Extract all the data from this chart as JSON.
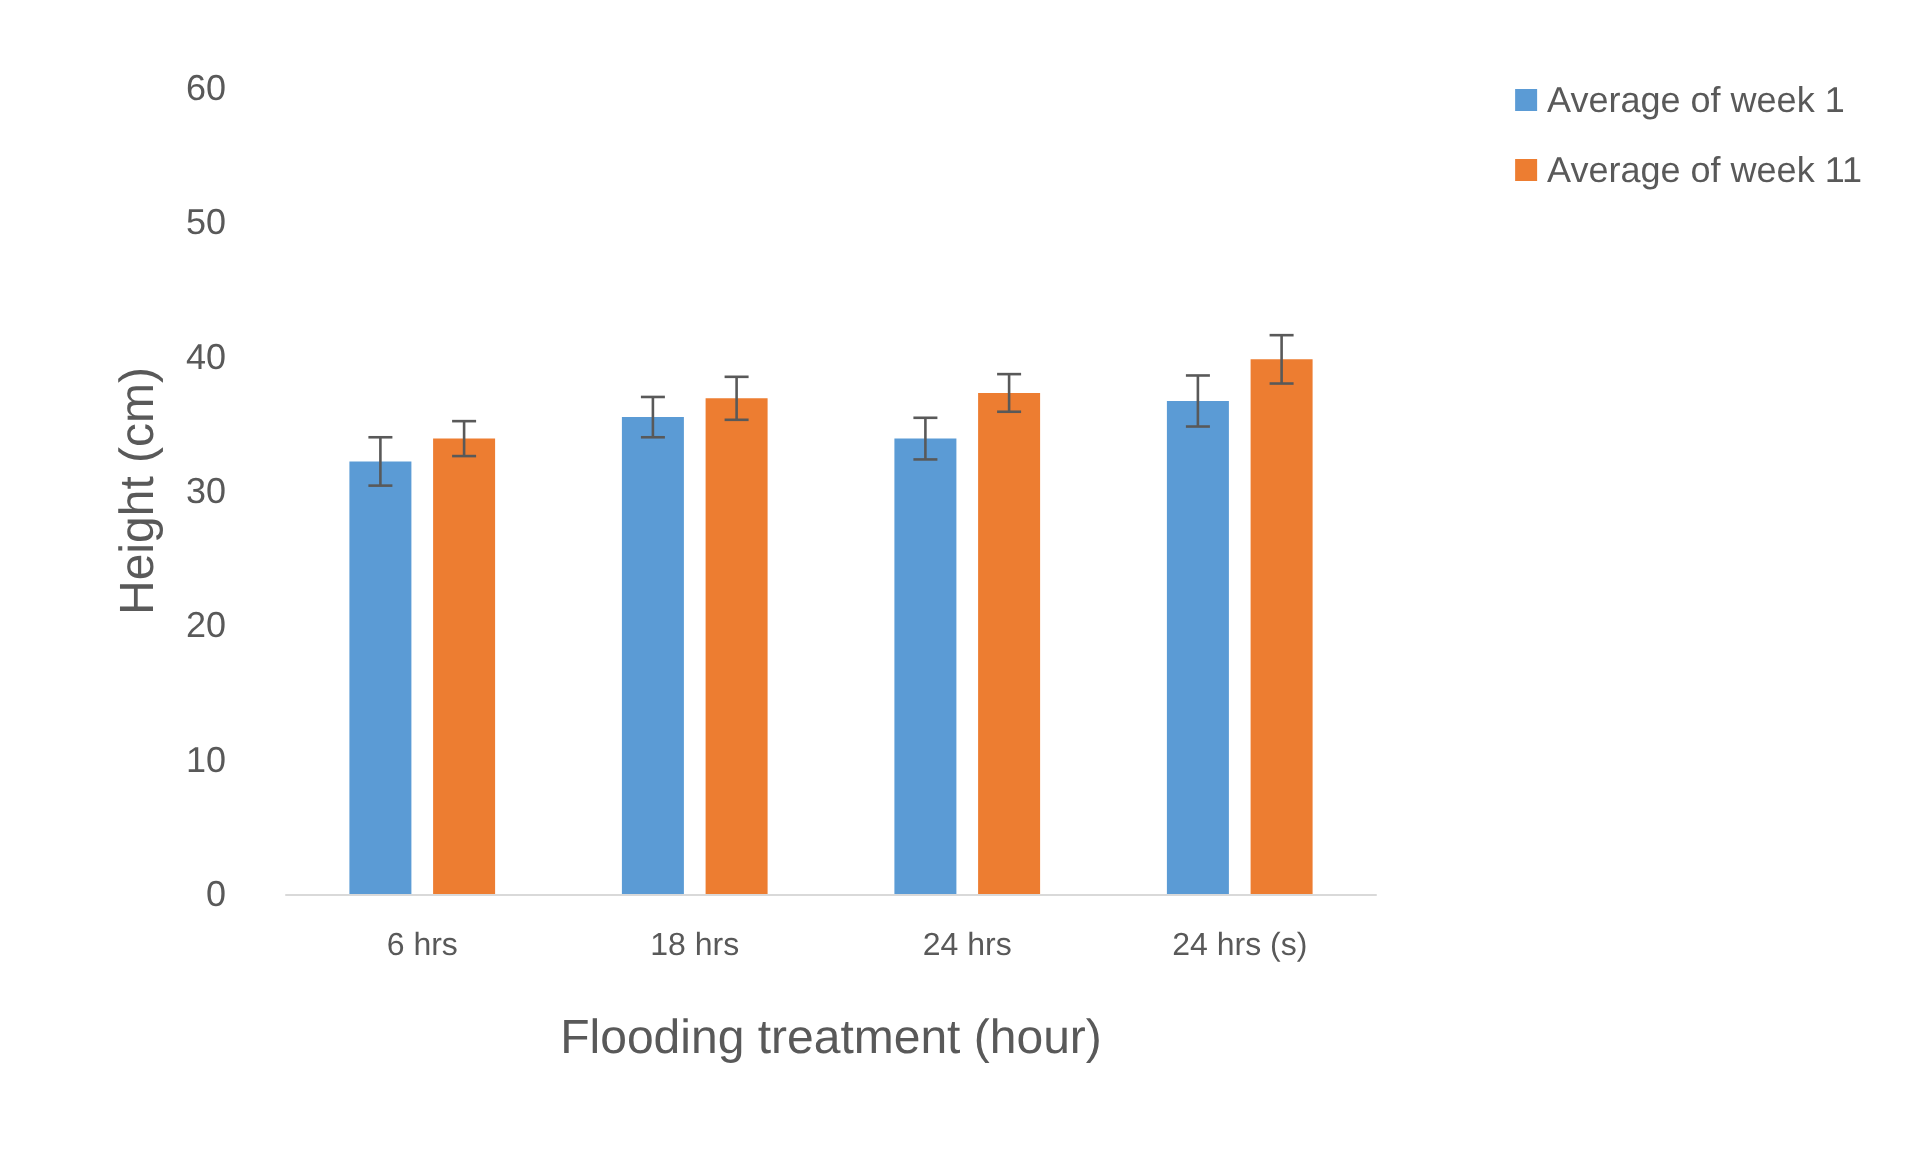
{
  "chart_data": {
    "type": "bar",
    "xlabel": "Flooding treatment (hour)",
    "ylabel": "Height (cm)",
    "categories": [
      "6 hrs",
      "18 hrs",
      "24 hrs",
      "24 hrs (s)"
    ],
    "series": [
      {
        "name": "Average of week 1",
        "color": "#5b9bd5",
        "values": [
          32.2,
          35.5,
          33.9,
          36.7
        ],
        "errors": [
          1.8,
          1.5,
          1.55,
          1.9
        ]
      },
      {
        "name": "Average of week 11",
        "color": "#ed7d31",
        "values": [
          33.9,
          36.9,
          37.3,
          39.8
        ],
        "errors": [
          1.3,
          1.6,
          1.4,
          1.8
        ]
      }
    ],
    "ylim": [
      0,
      60
    ],
    "yticks": [
      0,
      10,
      20,
      30,
      40,
      50,
      60
    ],
    "grid": false,
    "legend": "top right"
  }
}
